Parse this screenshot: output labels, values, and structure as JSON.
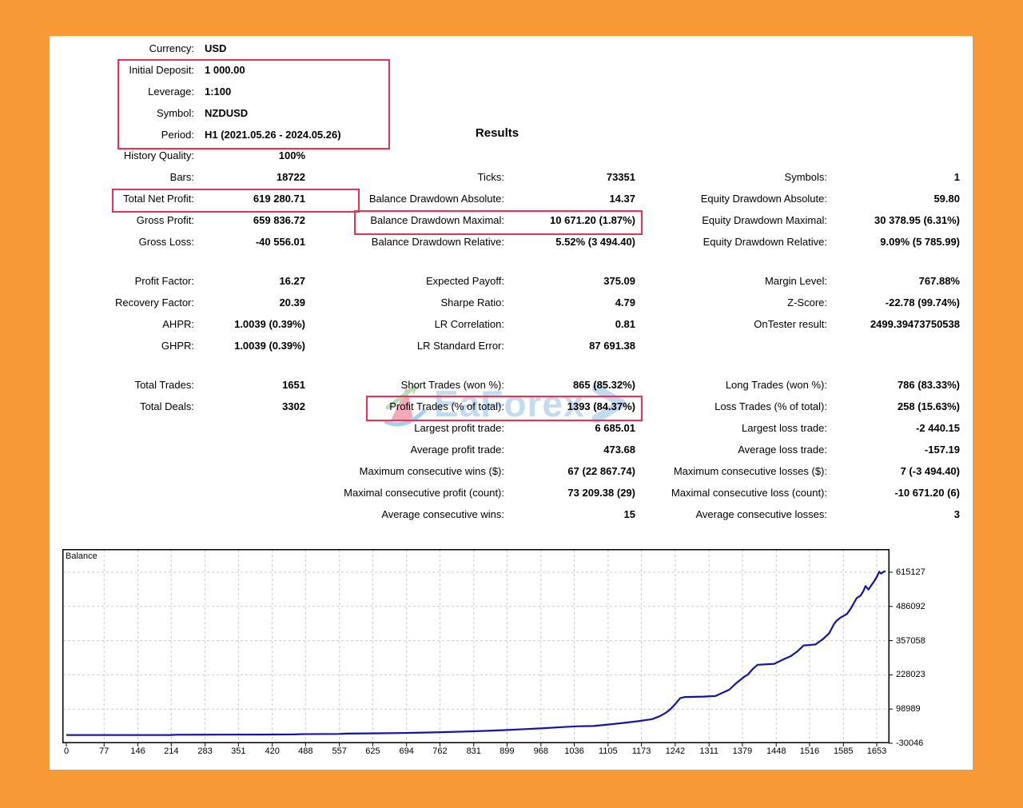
{
  "results_title": "Results",
  "header": {
    "rows": [
      {
        "label": "Currency:",
        "value": "USD"
      },
      {
        "label": "Initial Deposit:",
        "value": "1 000.00"
      },
      {
        "label": "Leverage:",
        "value": "1:100"
      },
      {
        "label": "Symbol:",
        "value": "NZDUSD"
      },
      {
        "label": "Period:",
        "value": "H1 (2021.05.26 - 2024.05.26)"
      }
    ]
  },
  "stats": {
    "columns": [
      {
        "name": "left",
        "items": [
          {
            "row": 0,
            "label": "History Quality:",
            "value": "100%"
          },
          {
            "row": 1,
            "label": "Bars:",
            "value": "18722"
          },
          {
            "row": 2,
            "label": "Total Net Profit:",
            "value": "619 280.71"
          },
          {
            "row": 3,
            "label": "Gross Profit:",
            "value": "659 836.72"
          },
          {
            "row": 4,
            "label": "Gross Loss:",
            "value": "-40 556.01"
          },
          {
            "row": 5,
            "label": "Profit Factor:",
            "value": "16.27"
          },
          {
            "row": 6,
            "label": "Recovery Factor:",
            "value": "20.39"
          },
          {
            "row": 7,
            "label": "AHPR:",
            "value": "1.0039 (0.39%)"
          },
          {
            "row": 8,
            "label": "GHPR:",
            "value": "1.0039 (0.39%)"
          },
          {
            "row": 9,
            "label": "Total Trades:",
            "value": "1651"
          },
          {
            "row": 10,
            "label": "Total Deals:",
            "value": "3302"
          }
        ]
      },
      {
        "name": "middle",
        "items": [
          {
            "row": 1,
            "label": "Ticks:",
            "value": "73351"
          },
          {
            "row": 2,
            "label": "Balance Drawdown Absolute:",
            "value": "14.37"
          },
          {
            "row": 3,
            "label": "Balance Drawdown Maximal:",
            "value": "10 671.20 (1.87%)"
          },
          {
            "row": 4,
            "label": "Balance Drawdown Relative:",
            "value": "5.52% (3 494.40)"
          },
          {
            "row": 5,
            "label": "Expected Payoff:",
            "value": "375.09"
          },
          {
            "row": 6,
            "label": "Sharpe Ratio:",
            "value": "4.79"
          },
          {
            "row": 7,
            "label": "LR Correlation:",
            "value": "0.81"
          },
          {
            "row": 8,
            "label": "LR Standard Error:",
            "value": "87 691.38"
          },
          {
            "row": 9,
            "label": "Short Trades (won %):",
            "value": "865 (85.32%)"
          },
          {
            "row": 10,
            "label": "Profit Trades (% of total):",
            "value": "1393 (84.37%)"
          },
          {
            "row": 11,
            "label": "Largest profit trade:",
            "value": "6 685.01"
          },
          {
            "row": 12,
            "label": "Average profit trade:",
            "value": "473.68"
          },
          {
            "row": 13,
            "label": "Maximum consecutive wins ($):",
            "value": "67 (22 867.74)"
          },
          {
            "row": 14,
            "label": "Maximal consecutive profit (count):",
            "value": "73 209.38 (29)"
          },
          {
            "row": 15,
            "label": "Average consecutive wins:",
            "value": "15"
          }
        ]
      },
      {
        "name": "right",
        "items": [
          {
            "row": 1,
            "label": "Symbols:",
            "value": "1"
          },
          {
            "row": 2,
            "label": "Equity Drawdown Absolute:",
            "value": "59.80"
          },
          {
            "row": 3,
            "label": "Equity Drawdown Maximal:",
            "value": "30 378.95 (6.31%)"
          },
          {
            "row": 4,
            "label": "Equity Drawdown Relative:",
            "value": "9.09% (5 785.99)"
          },
          {
            "row": 5,
            "label": "Margin Level:",
            "value": "767.88%"
          },
          {
            "row": 6,
            "label": "Z-Score:",
            "value": "-22.78 (99.74%)"
          },
          {
            "row": 7,
            "label": "OnTester result:",
            "value": "2499.39473750538"
          },
          {
            "row": 9,
            "label": "Long Trades (won %):",
            "value": "786 (83.33%)"
          },
          {
            "row": 10,
            "label": "Loss Trades (% of total):",
            "value": "258 (15.63%)"
          },
          {
            "row": 11,
            "label": "Largest loss trade:",
            "value": "-2 440.15"
          },
          {
            "row": 12,
            "label": "Average loss trade:",
            "value": "-157.19"
          },
          {
            "row": 13,
            "label": "Maximum consecutive losses ($):",
            "value": "7 (-3 494.40)"
          },
          {
            "row": 14,
            "label": "Maximal consecutive loss (count):",
            "value": "-10 671.20 (6)"
          },
          {
            "row": 15,
            "label": "Average consecutive losses:",
            "value": "3"
          }
        ]
      }
    ]
  },
  "highlight_color": "#E73156",
  "watermark": {
    "text": "EaForex"
  },
  "chart_data": {
    "type": "line",
    "title": "Balance",
    "series_name": "Balance",
    "line_color": "#1313A8",
    "grid": true,
    "legend_position": "none",
    "xlabel": "",
    "ylabel": "",
    "x_ticks": [
      0,
      77,
      146,
      214,
      283,
      351,
      420,
      488,
      557,
      625,
      694,
      762,
      831,
      899,
      968,
      1036,
      1105,
      1173,
      1242,
      1311,
      1379,
      1448,
      1516,
      1585,
      1653
    ],
    "y_ticks": [
      615127,
      486092,
      357058,
      228023,
      98989,
      -30046
    ],
    "x_range": [
      0,
      1686
    ],
    "y_range": [
      -30046,
      702000
    ],
    "points": [
      [
        0,
        1000
      ],
      [
        120,
        1150
      ],
      [
        214,
        1300
      ],
      [
        224,
        2200
      ],
      [
        320,
        2500
      ],
      [
        400,
        2900
      ],
      [
        465,
        3400
      ],
      [
        478,
        4300
      ],
      [
        556,
        5200
      ],
      [
        572,
        6400
      ],
      [
        640,
        7500
      ],
      [
        700,
        9000
      ],
      [
        740,
        10600
      ],
      [
        780,
        12400
      ],
      [
        820,
        14500
      ],
      [
        860,
        17000
      ],
      [
        900,
        20000
      ],
      [
        940,
        23500
      ],
      [
        975,
        27000
      ],
      [
        1010,
        31000
      ],
      [
        1040,
        34000
      ],
      [
        1075,
        35200
      ],
      [
        1105,
        40500
      ],
      [
        1135,
        46500
      ],
      [
        1165,
        53000
      ],
      [
        1195,
        61000
      ],
      [
        1210,
        72000
      ],
      [
        1222,
        84000
      ],
      [
        1232,
        98000
      ],
      [
        1242,
        118000
      ],
      [
        1252,
        140000
      ],
      [
        1262,
        144500
      ],
      [
        1300,
        146000
      ],
      [
        1324,
        148000
      ],
      [
        1352,
        172000
      ],
      [
        1366,
        196000
      ],
      [
        1382,
        220000
      ],
      [
        1390,
        229000
      ],
      [
        1400,
        250000
      ],
      [
        1410,
        266000
      ],
      [
        1444,
        269500
      ],
      [
        1462,
        286000
      ],
      [
        1478,
        299000
      ],
      [
        1492,
        318000
      ],
      [
        1504,
        339000
      ],
      [
        1528,
        342500
      ],
      [
        1544,
        364000
      ],
      [
        1556,
        385000
      ],
      [
        1566,
        420000
      ],
      [
        1572,
        434000
      ],
      [
        1580,
        445000
      ],
      [
        1592,
        457500
      ],
      [
        1600,
        478000
      ],
      [
        1606,
        498000
      ],
      [
        1612,
        517000
      ],
      [
        1620,
        527000
      ],
      [
        1626,
        545000
      ],
      [
        1630,
        563000
      ],
      [
        1636,
        550000
      ],
      [
        1642,
        566000
      ],
      [
        1648,
        582000
      ],
      [
        1653,
        597000
      ],
      [
        1658,
        617000
      ],
      [
        1662,
        610000
      ],
      [
        1666,
        615500
      ],
      [
        1671,
        620280
      ]
    ]
  }
}
